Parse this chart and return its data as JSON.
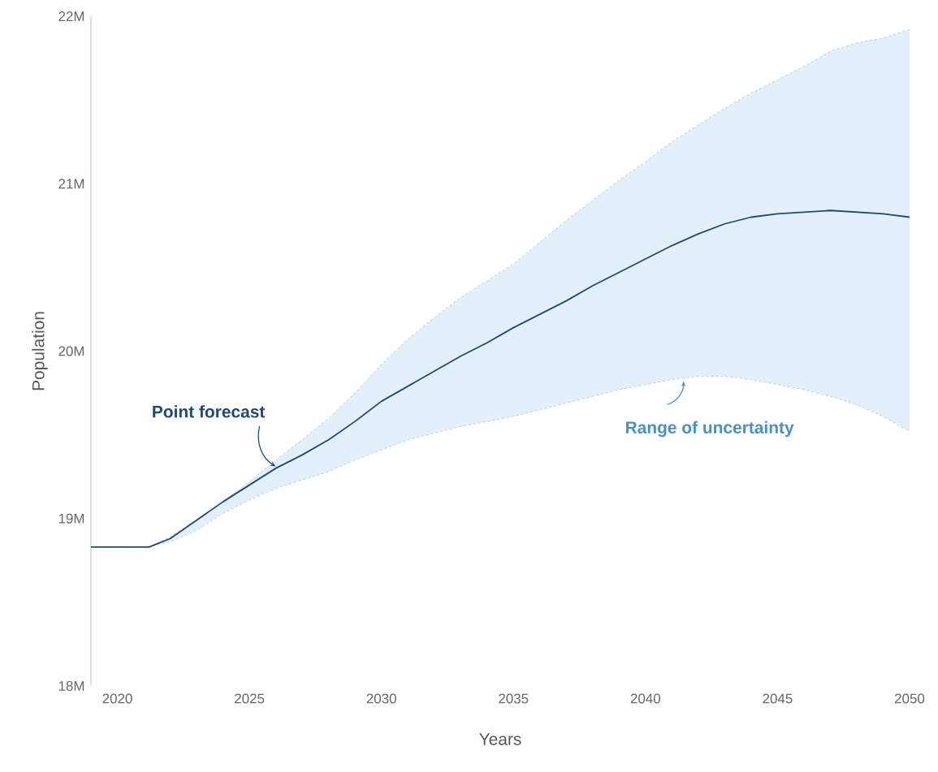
{
  "chart_data": {
    "type": "line",
    "xlabel": "Years",
    "ylabel": "Population",
    "xlim": [
      2019,
      2050
    ],
    "xticks": [
      2020,
      2025,
      2030,
      2035,
      2040,
      2045,
      2050
    ],
    "ylim": [
      18,
      22
    ],
    "yticks": [
      {
        "value": 18,
        "label": "18M"
      },
      {
        "value": 19,
        "label": "19M"
      },
      {
        "value": 20,
        "label": "20M"
      },
      {
        "value": 21,
        "label": "21M"
      },
      {
        "value": 22,
        "label": "22M"
      }
    ],
    "grid": false,
    "series": [
      {
        "color": "#1d4a78",
        "x": [
          2019,
          2020,
          2021.2,
          2022,
          2023,
          2024,
          2025,
          2026,
          2027,
          2028,
          2029,
          2030,
          2031,
          2032,
          2033,
          2034,
          2035,
          2036,
          2037,
          2038,
          2039,
          2040,
          2041,
          2042,
          2043,
          2044,
          2045,
          2046,
          2047,
          2048,
          2049,
          2050
        ],
        "values": [
          18.83,
          18.83,
          18.83,
          18.88,
          18.99,
          19.1,
          19.2,
          19.3,
          19.38,
          19.47,
          19.58,
          19.7,
          19.79,
          19.88,
          19.97,
          20.05,
          20.14,
          20.22,
          20.3,
          20.39,
          20.47,
          20.55,
          20.63,
          20.7,
          20.76,
          20.8,
          20.82,
          20.83,
          20.84,
          20.83,
          20.82,
          20.8
        ],
        "lower": [
          18.83,
          18.83,
          18.83,
          18.86,
          18.93,
          19.03,
          19.11,
          19.18,
          19.23,
          19.28,
          19.35,
          19.41,
          19.47,
          19.51,
          19.55,
          19.58,
          19.61,
          19.65,
          19.69,
          19.73,
          19.77,
          19.8,
          19.83,
          19.85,
          19.85,
          19.83,
          19.8,
          19.77,
          19.73,
          19.68,
          19.61,
          19.52
        ],
        "upper": [
          18.83,
          18.83,
          18.83,
          18.89,
          18.99,
          19.1,
          19.22,
          19.35,
          19.47,
          19.6,
          19.75,
          19.92,
          20.07,
          20.2,
          20.32,
          20.42,
          20.52,
          20.65,
          20.78,
          20.9,
          21.02,
          21.13,
          21.25,
          21.35,
          21.45,
          21.54,
          21.62,
          21.7,
          21.79,
          21.84,
          21.87,
          21.92
        ]
      }
    ],
    "annotations": [
      {
        "text": "Point forecast",
        "x": 2026,
        "y": 19.3
      },
      {
        "text": "Range of uncertainty",
        "x": 2041.5,
        "y": 19.85
      }
    ]
  }
}
